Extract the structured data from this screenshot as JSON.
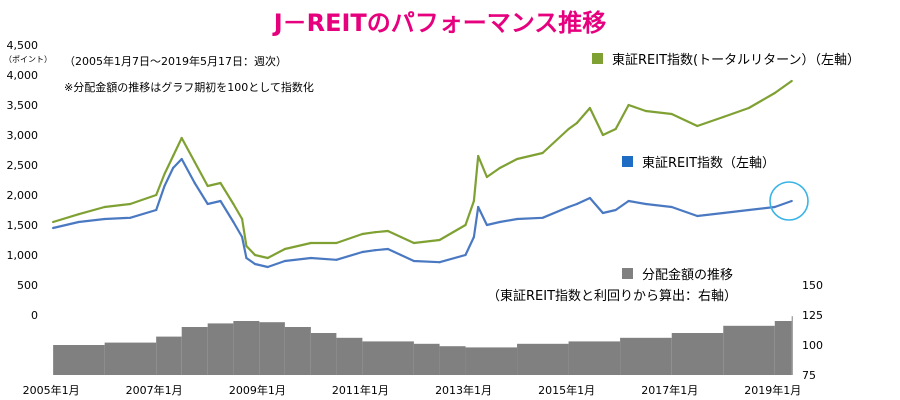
{
  "chart_data": {
    "type": "line",
    "title": "J－REITのパフォーマンス推移",
    "notes": [
      "（2005年1月7日～2019年5月17日：週次）",
      "※分配金額の推移はグラフ期初を100として指数化"
    ],
    "left_axis": {
      "ticks": [
        "4,500",
        "4,000",
        "3,500",
        "3,000",
        "2,500",
        "2,000",
        "1,500",
        "1,000",
        "500",
        "0"
      ],
      "unit": "（ポイント）",
      "ylim": [
        0,
        4500
      ]
    },
    "right_axis": {
      "ticks": [
        "150",
        "125",
        "100",
        "75"
      ],
      "ylim": [
        75,
        150
      ]
    },
    "x_ticks": [
      "2005年1月",
      "2007年1月",
      "2009年1月",
      "2011年1月",
      "2013年1月",
      "2015年1月",
      "2017年1月",
      "2019年1月"
    ],
    "x_range": [
      "2005-01-07",
      "2019-05-17"
    ],
    "series": [
      {
        "name": "東証REIT指数(トータルリターン）（左軸）",
        "type": "line",
        "axis": "left",
        "color": "#7fa133",
        "x": [
          "2005-01",
          "2005-07",
          "2006-01",
          "2006-07",
          "2007-01",
          "2007-03",
          "2007-05",
          "2007-07",
          "2007-10",
          "2008-01",
          "2008-04",
          "2008-07",
          "2008-09",
          "2008-10",
          "2008-12",
          "2009-03",
          "2009-07",
          "2010-01",
          "2010-07",
          "2011-01",
          "2011-04",
          "2011-07",
          "2011-10",
          "2012-01",
          "2012-07",
          "2013-01",
          "2013-03",
          "2013-04",
          "2013-06",
          "2013-09",
          "2014-01",
          "2014-07",
          "2015-01",
          "2015-03",
          "2015-06",
          "2015-09",
          "2015-12",
          "2016-03",
          "2016-07",
          "2017-01",
          "2017-07",
          "2018-01",
          "2018-07",
          "2019-01",
          "2019-05"
        ],
        "y": [
          1550,
          1680,
          1800,
          1850,
          2000,
          2350,
          2650,
          2950,
          2550,
          2150,
          2200,
          1850,
          1600,
          1150,
          1000,
          950,
          1100,
          1200,
          1200,
          1350,
          1380,
          1400,
          1300,
          1200,
          1250,
          1500,
          1900,
          2650,
          2300,
          2450,
          2600,
          2700,
          3100,
          3200,
          3450,
          3000,
          3100,
          3500,
          3400,
          3350,
          3150,
          3300,
          3450,
          3700,
          3900
        ]
      },
      {
        "name": "東証REIT指数（左軸）",
        "type": "line",
        "axis": "left",
        "color": "#4a79c2",
        "x": [
          "2005-01",
          "2005-07",
          "2006-01",
          "2006-07",
          "2007-01",
          "2007-03",
          "2007-05",
          "2007-07",
          "2007-10",
          "2008-01",
          "2008-04",
          "2008-07",
          "2008-09",
          "2008-10",
          "2008-12",
          "2009-03",
          "2009-07",
          "2010-01",
          "2010-07",
          "2011-01",
          "2011-04",
          "2011-07",
          "2011-10",
          "2012-01",
          "2012-07",
          "2013-01",
          "2013-03",
          "2013-04",
          "2013-06",
          "2013-09",
          "2014-01",
          "2014-07",
          "2015-01",
          "2015-03",
          "2015-06",
          "2015-09",
          "2015-12",
          "2016-03",
          "2016-07",
          "2017-01",
          "2017-07",
          "2018-01",
          "2018-07",
          "2019-01",
          "2019-05"
        ],
        "y": [
          1450,
          1550,
          1600,
          1620,
          1750,
          2150,
          2450,
          2600,
          2200,
          1850,
          1900,
          1550,
          1300,
          950,
          850,
          800,
          900,
          950,
          920,
          1050,
          1080,
          1100,
          1000,
          900,
          880,
          1000,
          1300,
          1800,
          1500,
          1550,
          1600,
          1620,
          1800,
          1850,
          1950,
          1700,
          1750,
          1900,
          1850,
          1800,
          1650,
          1700,
          1750,
          1800,
          1900
        ]
      },
      {
        "name": "分配金額の推移",
        "type": "bar",
        "axis": "right",
        "color": "#808080",
        "x": [
          "2005-01",
          "2006-01",
          "2007-01",
          "2007-07",
          "2008-01",
          "2008-07",
          "2009-01",
          "2009-07",
          "2010-01",
          "2010-07",
          "2011-01",
          "2012-01",
          "2012-07",
          "2013-01",
          "2014-01",
          "2015-01",
          "2016-01",
          "2017-01",
          "2018-01",
          "2019-01",
          "2019-05"
        ],
        "y": [
          100,
          102,
          107,
          115,
          118,
          120,
          119,
          115,
          110,
          106,
          103,
          101,
          99,
          98,
          101,
          103,
          106,
          110,
          116,
          120,
          124
        ]
      }
    ],
    "legend": [
      {
        "label": "東証REIT指数(トータルリターン）（左軸）",
        "color": "#7fa133"
      },
      {
        "label": "東証REIT指数（左軸）",
        "color": "#1f6cc4"
      },
      {
        "label": "分配金額の推移",
        "color": "#808080"
      },
      {
        "label": "（東証REIT指数と利回りから算出：右軸）",
        "color": ""
      }
    ],
    "highlight_color": "#3ab4e6",
    "title_color": "#e6007e"
  }
}
